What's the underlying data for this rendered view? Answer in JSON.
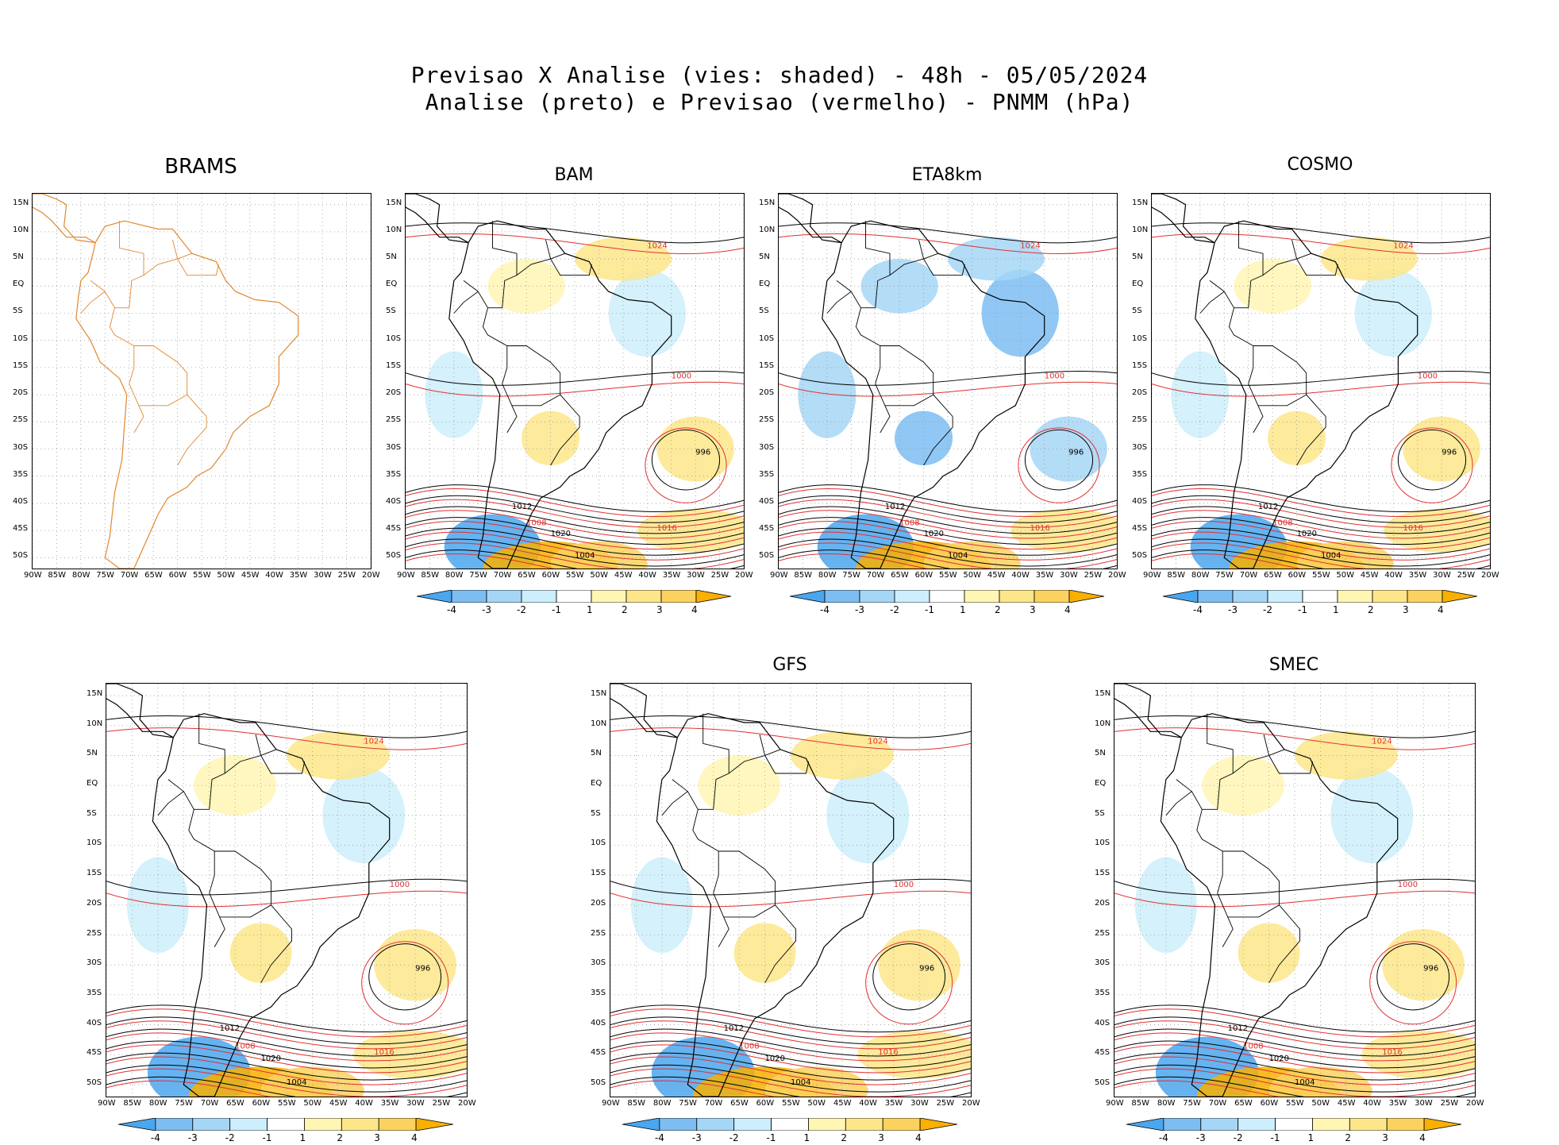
{
  "header": {
    "title_line1": "Previsao X Analise (vies: shaded) - 48h - 05/05/2024",
    "title_line2": "Analise (preto) e Previsao (vermelho) - PNMM (hPa)"
  },
  "colors": {
    "analysis_contour": "#000000",
    "forecast_contour": "#e03030",
    "coast_brams": "#e08830",
    "bias_neg4": "#4aa6ee",
    "bias_neg3": "#7dbdf2",
    "bias_neg2": "#a6d6f6",
    "bias_neg1": "#cdeefc",
    "bias_pos1": "#fff6b4",
    "bias_pos2": "#fde68a",
    "bias_pos3": "#fbd260",
    "bias_pos4": "#f9b000"
  },
  "axes": {
    "lat_labels": [
      "15N",
      "10N",
      "5N",
      "EQ",
      "5S",
      "10S",
      "15S",
      "20S",
      "25S",
      "30S",
      "35S",
      "40S",
      "45S",
      "50S"
    ],
    "lon_labels": [
      "90W",
      "85W",
      "80W",
      "75W",
      "70W",
      "65W",
      "60W",
      "55W",
      "50W",
      "45W",
      "40W",
      "35W",
      "30W",
      "25W",
      "20W"
    ]
  },
  "colorbar": {
    "ticks": [
      "-4",
      "-3",
      "-2",
      "-1",
      "1",
      "2",
      "3",
      "4"
    ]
  },
  "panels": [
    {
      "id": "brams",
      "title": "BRAMS"
    },
    {
      "id": "bam",
      "title": "BAM"
    },
    {
      "id": "eta8km",
      "title": "ETA8km"
    },
    {
      "id": "cosmo",
      "title": "COSMO"
    },
    {
      "id": "unnamed",
      "title": ""
    },
    {
      "id": "gfs",
      "title": "GFS"
    },
    {
      "id": "smec",
      "title": "SMEC"
    }
  ],
  "chart_data": {
    "type": "heatmap",
    "title": "Previsao X Analise (vies: shaded) - 48h - 05/05/2024",
    "subtitle": "Analise (preto) e Previsao (vermelho) - PNMM (hPa)",
    "variable": "PNMM (hPa)",
    "shading": "bias (forecast - analysis)",
    "colorbar_levels": [
      -4,
      -3,
      -2,
      -1,
      1,
      2,
      3,
      4
    ],
    "xlim": [
      "90W",
      "20W"
    ],
    "ylim": [
      "52S",
      "17N"
    ],
    "contour_labels_hPa": [
      "996",
      "1000",
      "1004",
      "1008",
      "1012",
      "1016",
      "1020",
      "1024"
    ],
    "models": [
      "BRAMS",
      "BAM",
      "ETA8km",
      "COSMO",
      "GFS",
      "SMEC"
    ]
  }
}
